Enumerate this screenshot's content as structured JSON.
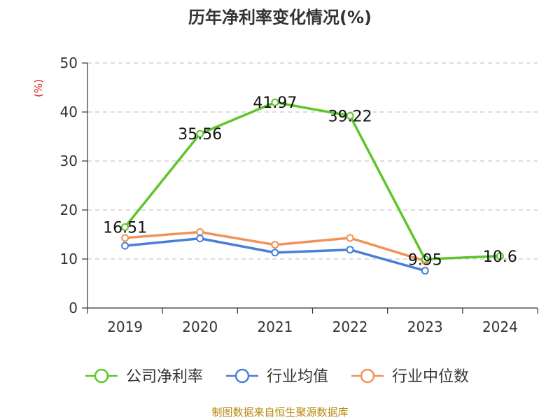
{
  "chart_data": {
    "type": "line",
    "title": "历年净利率变化情况(%)",
    "ylabel": "(%)",
    "xlabel": "",
    "ylim": [
      0,
      50
    ],
    "yticks": [
      0,
      10,
      20,
      30,
      40,
      50
    ],
    "grid": true,
    "legend_position": "bottom",
    "categories": [
      "2019",
      "2020",
      "2021",
      "2022",
      "2023",
      "2024"
    ],
    "series": [
      {
        "name": "公司净利率",
        "color": "#5ec52a",
        "values": [
          16.51,
          35.56,
          41.97,
          39.22,
          9.95,
          10.6
        ],
        "labels": [
          "16.51",
          "35.56",
          "41.97",
          "39.22",
          "9.95",
          "10.6"
        ]
      },
      {
        "name": "行业均值",
        "color": "#4a7fd8",
        "values": [
          12.7,
          14.2,
          11.3,
          11.9,
          7.6,
          null
        ]
      },
      {
        "name": "行业中位数",
        "color": "#f0935a",
        "values": [
          14.3,
          15.5,
          12.9,
          14.3,
          9.6,
          null
        ]
      }
    ],
    "source": "制图数据来自恒生聚源数据库"
  }
}
